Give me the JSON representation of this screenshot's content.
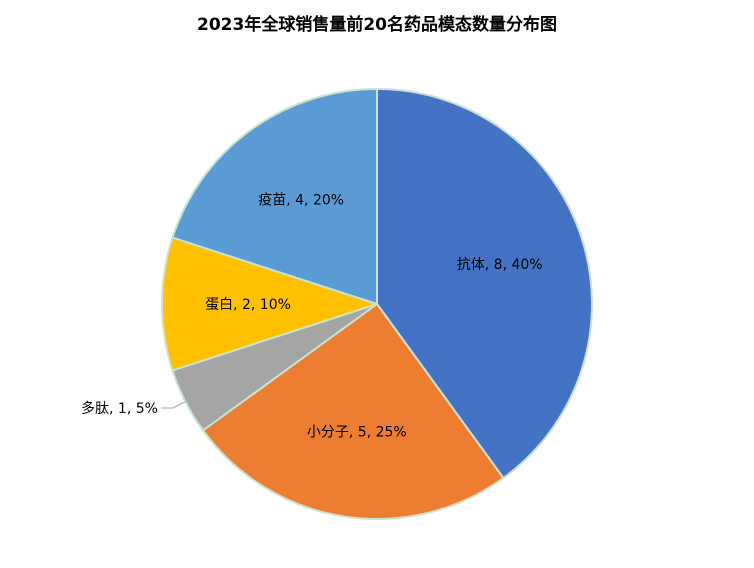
{
  "chart_data": {
    "type": "pie",
    "title": "2023年全球销售量前20名药品模态数量分布图",
    "start_angle_deg": 0,
    "direction": "clockwise",
    "border_color": "#c9e3cf",
    "slices": [
      {
        "label": "抗体",
        "value": 8,
        "percent": "40%",
        "color": "#4472c4",
        "data_label": "抗体, 8, 40%"
      },
      {
        "label": "小分子",
        "value": 5,
        "percent": "25%",
        "color": "#ed7d31",
        "data_label": "小分子, 5, 25%"
      },
      {
        "label": "多肽",
        "value": 1,
        "percent": "5%",
        "color": "#a5a5a5",
        "data_label": "多肽, 1, 5%",
        "label_outside": true
      },
      {
        "label": "蛋白",
        "value": 2,
        "percent": "10%",
        "color": "#ffc000",
        "data_label": "蛋白, 2, 10%"
      },
      {
        "label": "疫苗",
        "value": 4,
        "percent": "20%",
        "color": "#5b9bd5",
        "data_label": "疫苗, 4, 20%"
      }
    ]
  }
}
